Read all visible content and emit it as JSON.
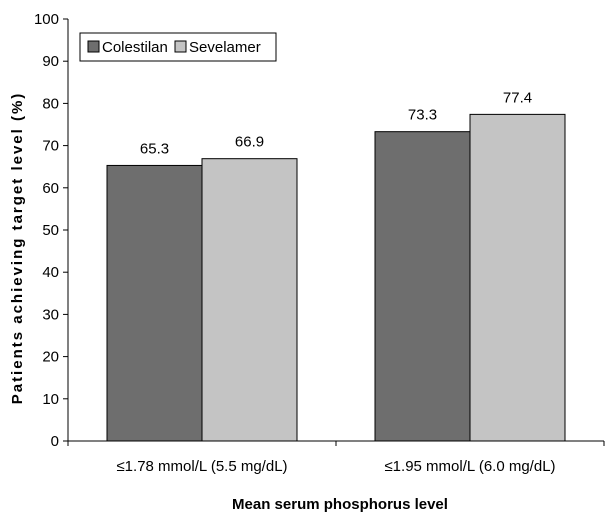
{
  "chart_data": {
    "type": "bar",
    "categories": [
      "≤1.78 mmol/L (5.5 mg/dL)",
      "≤1.95 mmol/L (6.0 mg/dL)"
    ],
    "series": [
      {
        "name": "Colestilan",
        "values": [
          65.3,
          73.3
        ],
        "color": "#6e6e6e"
      },
      {
        "name": "Sevelamer",
        "values": [
          66.9,
          77.4
        ],
        "color": "#c4c4c4"
      }
    ],
    "data_labels": [
      [
        "65.3",
        "73.3"
      ],
      [
        "66.9",
        "77.4"
      ]
    ],
    "xlabel": "Mean serum phosphorus level",
    "ylabel": "Patients achieving target level (%)",
    "ylim": [
      0,
      100
    ],
    "yticks": [
      0,
      10,
      20,
      30,
      40,
      50,
      60,
      70,
      80,
      90,
      100
    ],
    "grid": false,
    "legend": "top-left"
  }
}
